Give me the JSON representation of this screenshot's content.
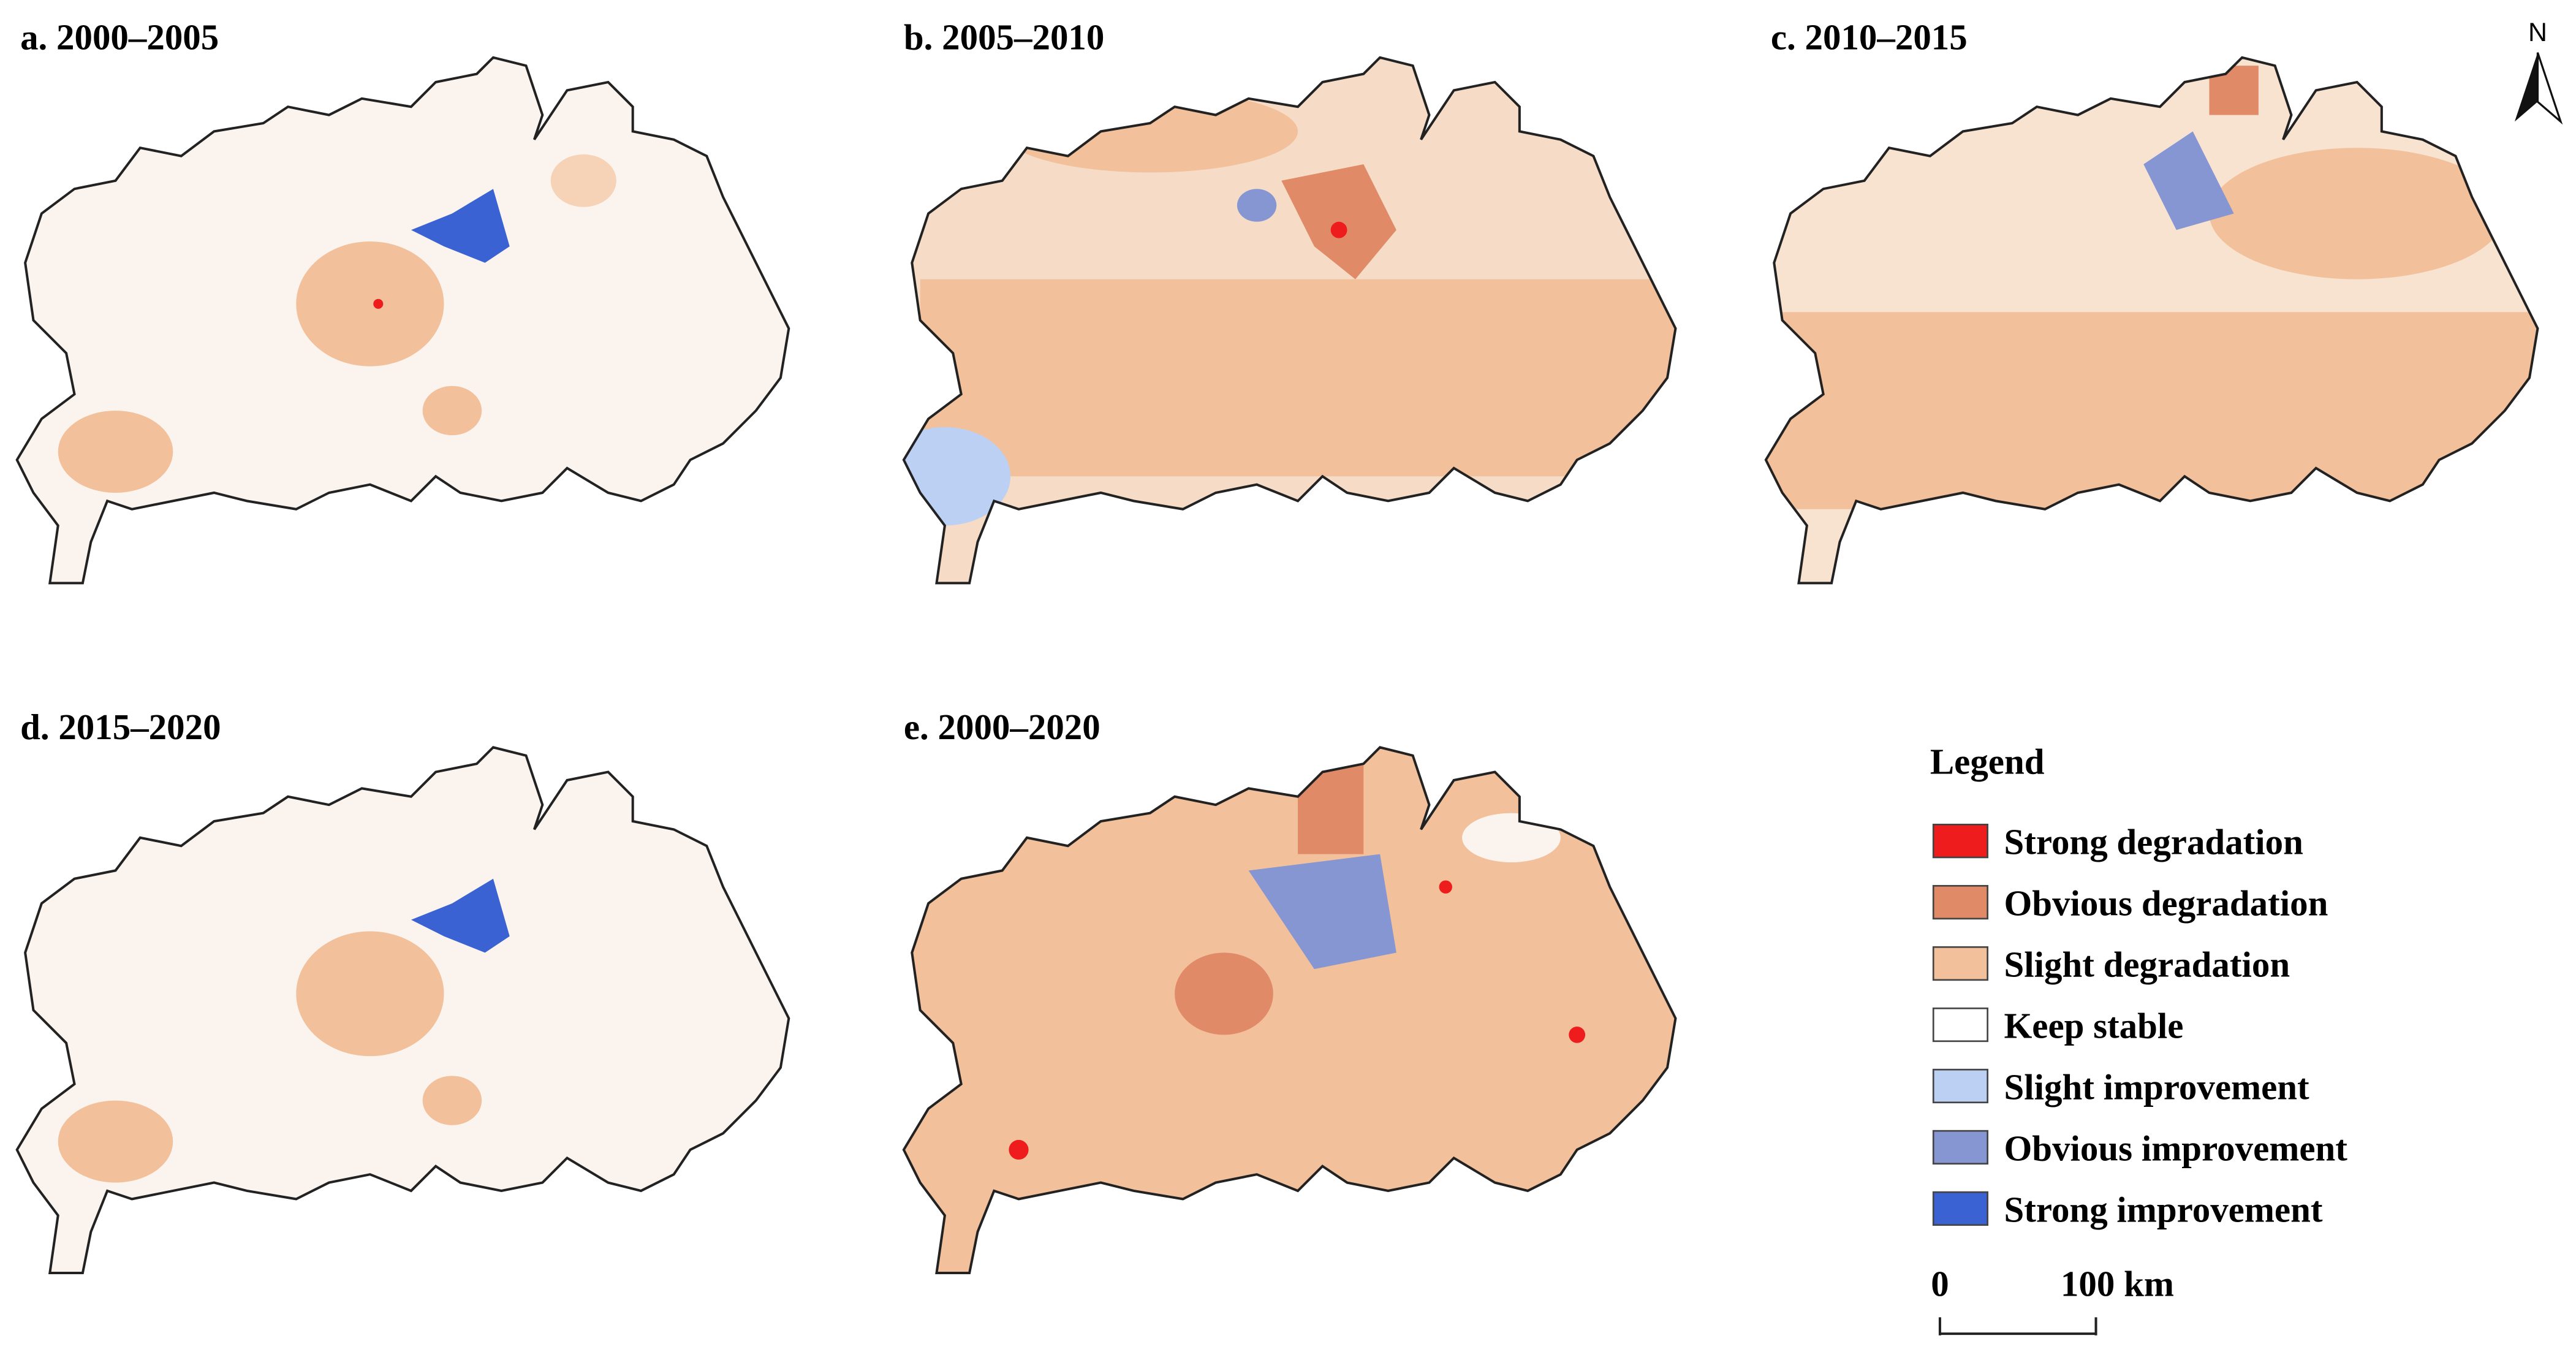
{
  "panels": [
    {
      "label": "a. 2000–2005"
    },
    {
      "label": "b. 2005–2010"
    },
    {
      "label": "c. 2010–2015"
    },
    {
      "label": "d. 2015–2020"
    },
    {
      "label": "e. 2000–2020"
    }
  ],
  "legend": {
    "title": "Legend",
    "items": [
      {
        "label": "Strong degradation",
        "color": "#ee1c1c"
      },
      {
        "label": "Obvious degradation",
        "color": "#e08a68"
      },
      {
        "label": "Slight degradation",
        "color": "#f2c09a"
      },
      {
        "label": "Keep stable",
        "color": "#ffffff"
      },
      {
        "label": "Slight improvement",
        "color": "#bcd0f4"
      },
      {
        "label": "Obvious improvement",
        "color": "#8596d2"
      },
      {
        "label": "Strong improvement",
        "color": "#3a62d2"
      }
    ]
  },
  "scale_bar": {
    "start": "0",
    "end": "100",
    "unit": "km"
  },
  "north": "N"
}
